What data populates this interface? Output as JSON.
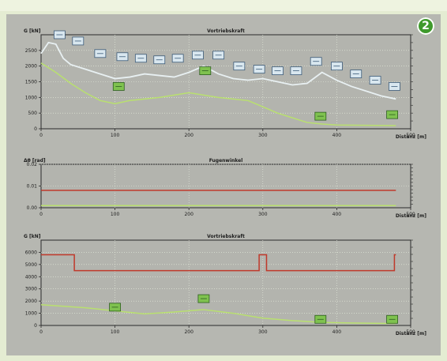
{
  "badge": "2",
  "chart_data": [
    {
      "type": "line",
      "title": "Vortriebskraft",
      "ylabel": "G [kN]",
      "xlabel": "Distanz [m]",
      "xlim": [
        0,
        500
      ],
      "ylim": [
        0,
        3000
      ],
      "xticks": [
        "0",
        "100",
        "200",
        "300",
        "400",
        "500"
      ],
      "yticks": [
        "0",
        "500",
        "1000",
        "1500",
        "2000",
        "2500"
      ],
      "series": [
        {
          "color": "#e8f0f2",
          "x": [
            0,
            10,
            20,
            30,
            40,
            60,
            80,
            100,
            120,
            140,
            160,
            180,
            200,
            220,
            240,
            260,
            280,
            300,
            320,
            340,
            360,
            380,
            400,
            420,
            440,
            460,
            480
          ],
          "y": [
            2400,
            2750,
            2700,
            2250,
            2050,
            1900,
            1750,
            1600,
            1650,
            1750,
            1700,
            1650,
            1800,
            2000,
            1750,
            1600,
            1550,
            1600,
            1500,
            1400,
            1450,
            1800,
            1550,
            1350,
            1200,
            1050,
            950
          ]
        },
        {
          "color": "#b9e06f",
          "x": [
            0,
            20,
            40,
            60,
            80,
            100,
            120,
            160,
            200,
            240,
            280,
            300,
            320,
            340,
            360,
            380,
            400,
            440,
            480
          ],
          "y": [
            2100,
            1800,
            1450,
            1150,
            900,
            800,
            900,
            1000,
            1150,
            1000,
            900,
            700,
            500,
            350,
            200,
            150,
            120,
            110,
            100
          ]
        }
      ],
      "labels_blue": [
        {
          "x": 25,
          "y": 3000
        },
        {
          "x": 50,
          "y": 2800
        },
        {
          "x": 80,
          "y": 2400
        },
        {
          "x": 110,
          "y": 2300
        },
        {
          "x": 135,
          "y": 2250
        },
        {
          "x": 160,
          "y": 2200
        },
        {
          "x": 185,
          "y": 2250
        },
        {
          "x": 212,
          "y": 2350
        },
        {
          "x": 240,
          "y": 2350
        },
        {
          "x": 268,
          "y": 2000
        },
        {
          "x": 295,
          "y": 1900
        },
        {
          "x": 320,
          "y": 1850
        },
        {
          "x": 345,
          "y": 1850
        },
        {
          "x": 372,
          "y": 2150
        },
        {
          "x": 400,
          "y": 2000
        },
        {
          "x": 426,
          "y": 1750
        },
        {
          "x": 452,
          "y": 1550
        },
        {
          "x": 478,
          "y": 1350
        }
      ],
      "labels_green": [
        {
          "x": 105,
          "y": 1350
        },
        {
          "x": 222,
          "y": 1850
        },
        {
          "x": 378,
          "y": 400
        },
        {
          "x": 475,
          "y": 450
        }
      ]
    },
    {
      "type": "line",
      "title": "Fugenwinkel",
      "ylabel": "Δθ [rad]",
      "xlabel": "Distanz [m]",
      "xlim": [
        0,
        500
      ],
      "ylim": [
        0,
        0.02
      ],
      "xticks": [
        "0",
        "100",
        "200",
        "300",
        "400",
        "500"
      ],
      "yticks": [
        "0.00",
        "0.01",
        "0.02"
      ],
      "series": [
        {
          "color": "#c0392b",
          "x": [
            0,
            480
          ],
          "y": [
            0.008,
            0.008
          ]
        },
        {
          "color": "#b9e06f",
          "x": [
            0,
            480
          ],
          "y": [
            0.001,
            0.001
          ]
        }
      ]
    },
    {
      "type": "line",
      "title": "Vortriebskraft",
      "ylabel": "G [kN]",
      "xlabel": "Distanz [m]",
      "xlim": [
        0,
        500
      ],
      "ylim": [
        0,
        7000
      ],
      "xticks": [
        "0",
        "100",
        "200",
        "300",
        "400",
        "500"
      ],
      "yticks": [
        "0",
        "1000",
        "2000",
        "3000",
        "4000",
        "5000",
        "6000"
      ],
      "series": [
        {
          "color": "#c0392b",
          "x": [
            0,
            45,
            45,
            295,
            295,
            305,
            305,
            478,
            478,
            480
          ],
          "y": [
            5800,
            5800,
            4500,
            4500,
            5800,
            5800,
            4500,
            4500,
            5800,
            5800
          ]
        },
        {
          "color": "#b9e06f",
          "x": [
            0,
            60,
            100,
            140,
            180,
            220,
            260,
            300,
            340,
            380,
            420,
            480
          ],
          "y": [
            1700,
            1450,
            1200,
            950,
            1100,
            1300,
            1000,
            600,
            400,
            250,
            200,
            150
          ]
        }
      ],
      "labels_green": [
        {
          "x": 100,
          "y": 1500
        },
        {
          "x": 220,
          "y": 2200
        },
        {
          "x": 378,
          "y": 500
        },
        {
          "x": 475,
          "y": 500
        }
      ]
    }
  ]
}
